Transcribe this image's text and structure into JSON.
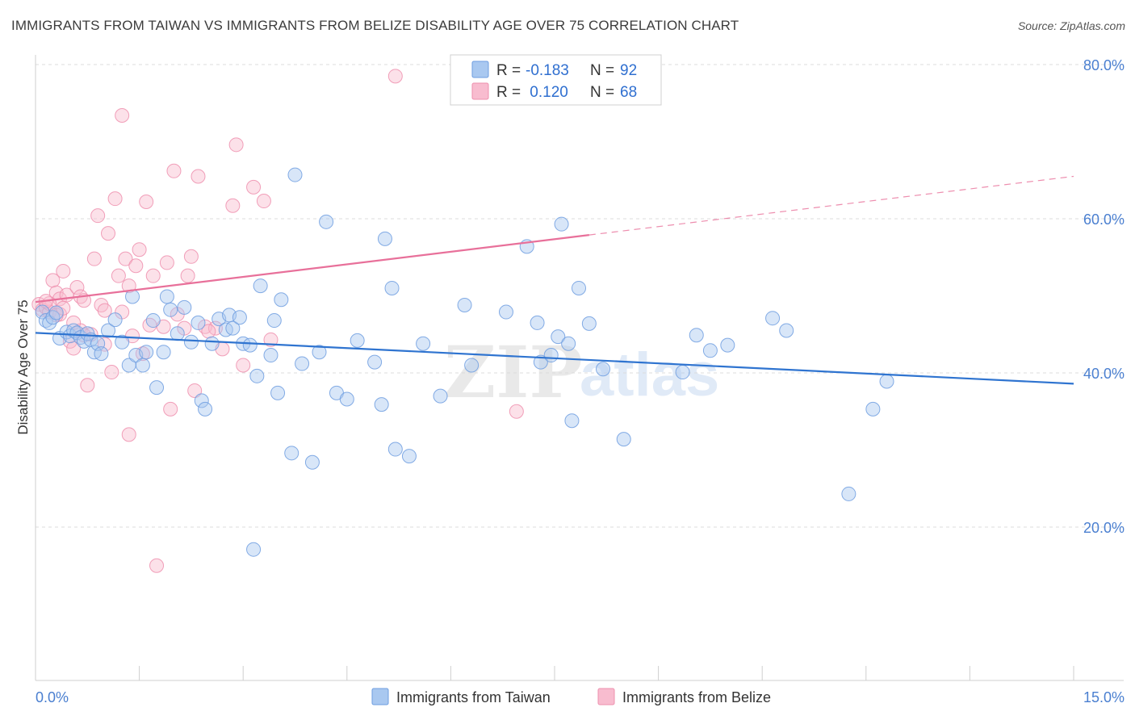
{
  "header": {
    "title": "IMMIGRANTS FROM TAIWAN VS IMMIGRANTS FROM BELIZE DISABILITY AGE OVER 75 CORRELATION CHART",
    "source": "Source: ZipAtlas.com"
  },
  "watermark": {
    "part1": "ZIP",
    "part2": "atlas"
  },
  "legend": {
    "r_label": "R =",
    "n_label": "N =",
    "entries": [
      {
        "r": "-0.183",
        "n": "92"
      },
      {
        "r": " 0.120",
        "n": "68"
      }
    ]
  },
  "colors": {
    "taiwan_fill": "#a9c8f0",
    "taiwan_stroke": "#6e9ee0",
    "taiwan_line": "#2f74d0",
    "belize_fill": "#f8bccf",
    "belize_stroke": "#ee8fae",
    "belize_line": "#e8709a"
  },
  "chart_data": {
    "type": "scatter",
    "title": "IMMIGRANTS FROM TAIWAN VS IMMIGRANTS FROM BELIZE DISABILITY AGE OVER 75 CORRELATION CHART",
    "xlabel": "",
    "ylabel": "Disability Age Over 75",
    "xlim": [
      0,
      15
    ],
    "ylim": [
      0,
      82
    ],
    "x_tick_labels": [
      "0.0%",
      "15.0%"
    ],
    "y_ticks": [
      20,
      40,
      60,
      80
    ],
    "y_tick_labels": [
      "20.0%",
      "40.0%",
      "60.0%",
      "80.0%"
    ],
    "grid": "horizontal dashed",
    "legend_position": "top-center",
    "series": [
      {
        "name": "Immigrants from Taiwan",
        "color": "#6e9ee0",
        "trend": {
          "x": [
            0,
            15
          ],
          "y": [
            45.2,
            38.6
          ],
          "dashed_after": null
        },
        "points": [
          [
            0.1,
            47.9
          ],
          [
            0.15,
            46.8
          ],
          [
            0.2,
            46.5
          ],
          [
            0.25,
            47.2
          ],
          [
            0.3,
            47.8
          ],
          [
            0.35,
            44.5
          ],
          [
            0.45,
            45.3
          ],
          [
            0.5,
            44.8
          ],
          [
            0.55,
            45.5
          ],
          [
            0.6,
            45.2
          ],
          [
            0.65,
            44.6
          ],
          [
            0.7,
            44.1
          ],
          [
            0.75,
            45.1
          ],
          [
            0.8,
            44.3
          ],
          [
            0.85,
            42.7
          ],
          [
            0.9,
            43.8
          ],
          [
            0.95,
            42.5
          ],
          [
            1.05,
            45.5
          ],
          [
            1.15,
            46.9
          ],
          [
            1.25,
            44.0
          ],
          [
            1.35,
            41.0
          ],
          [
            1.4,
            49.9
          ],
          [
            1.45,
            42.3
          ],
          [
            1.55,
            41.0
          ],
          [
            1.6,
            42.7
          ],
          [
            1.7,
            46.8
          ],
          [
            1.75,
            38.1
          ],
          [
            1.85,
            42.7
          ],
          [
            1.9,
            49.9
          ],
          [
            1.95,
            48.2
          ],
          [
            2.05,
            45.1
          ],
          [
            2.15,
            48.5
          ],
          [
            2.25,
            44.0
          ],
          [
            2.35,
            46.5
          ],
          [
            2.4,
            36.4
          ],
          [
            2.45,
            35.3
          ],
          [
            2.55,
            43.8
          ],
          [
            2.65,
            47.0
          ],
          [
            2.75,
            45.6
          ],
          [
            2.8,
            47.5
          ],
          [
            2.85,
            45.8
          ],
          [
            2.95,
            47.2
          ],
          [
            3.0,
            43.8
          ],
          [
            3.1,
            43.6
          ],
          [
            3.15,
            17.1
          ],
          [
            3.2,
            39.6
          ],
          [
            3.25,
            51.3
          ],
          [
            3.4,
            42.3
          ],
          [
            3.45,
            46.8
          ],
          [
            3.5,
            37.4
          ],
          [
            3.55,
            49.5
          ],
          [
            3.7,
            29.6
          ],
          [
            3.75,
            65.7
          ],
          [
            3.85,
            41.2
          ],
          [
            4.0,
            28.4
          ],
          [
            4.1,
            42.7
          ],
          [
            4.2,
            59.6
          ],
          [
            4.35,
            37.4
          ],
          [
            4.5,
            36.6
          ],
          [
            4.9,
            41.4
          ],
          [
            5.0,
            35.9
          ],
          [
            5.05,
            57.4
          ],
          [
            5.15,
            51.0
          ],
          [
            5.2,
            30.1
          ],
          [
            5.4,
            29.2
          ],
          [
            5.6,
            43.8
          ],
          [
            5.85,
            37.0
          ],
          [
            6.2,
            48.8
          ],
          [
            6.8,
            47.9
          ],
          [
            7.1,
            56.4
          ],
          [
            7.25,
            46.5
          ],
          [
            7.3,
            41.4
          ],
          [
            7.45,
            42.3
          ],
          [
            7.55,
            44.7
          ],
          [
            7.6,
            59.3
          ],
          [
            7.7,
            43.8
          ],
          [
            7.75,
            33.8
          ],
          [
            7.85,
            51.0
          ],
          [
            8.0,
            46.4
          ],
          [
            8.2,
            40.5
          ],
          [
            8.5,
            31.4
          ],
          [
            9.35,
            40.1
          ],
          [
            9.55,
            44.9
          ],
          [
            9.75,
            42.9
          ],
          [
            10.0,
            43.6
          ],
          [
            10.65,
            47.1
          ],
          [
            10.85,
            45.5
          ],
          [
            11.75,
            24.3
          ],
          [
            12.1,
            35.3
          ],
          [
            12.3,
            38.9
          ],
          [
            6.3,
            41.0
          ],
          [
            4.65,
            44.2
          ]
        ]
      },
      {
        "name": "Immigrants from Belize",
        "color": "#ee8fae",
        "trend": {
          "x": [
            0,
            15
          ],
          "y": [
            49.2,
            65.5
          ],
          "dashed_after": 8.0
        },
        "points": [
          [
            0.05,
            48.9
          ],
          [
            0.1,
            48.2
          ],
          [
            0.15,
            48.5
          ],
          [
            0.2,
            47.9
          ],
          [
            0.25,
            52.0
          ],
          [
            0.3,
            50.4
          ],
          [
            0.35,
            49.6
          ],
          [
            0.35,
            47.6
          ],
          [
            0.4,
            53.2
          ],
          [
            0.45,
            50.1
          ],
          [
            0.5,
            44.1
          ],
          [
            0.55,
            43.2
          ],
          [
            0.6,
            51.1
          ],
          [
            0.65,
            49.9
          ],
          [
            0.65,
            45.5
          ],
          [
            0.7,
            49.4
          ],
          [
            0.75,
            38.4
          ],
          [
            0.8,
            45.0
          ],
          [
            0.85,
            54.8
          ],
          [
            0.9,
            60.4
          ],
          [
            0.95,
            48.8
          ],
          [
            1.0,
            43.7
          ],
          [
            1.05,
            58.1
          ],
          [
            1.1,
            40.1
          ],
          [
            1.15,
            62.6
          ],
          [
            1.2,
            52.6
          ],
          [
            1.25,
            73.4
          ],
          [
            1.25,
            47.9
          ],
          [
            1.3,
            54.8
          ],
          [
            1.35,
            51.3
          ],
          [
            1.35,
            32.0
          ],
          [
            1.4,
            44.8
          ],
          [
            1.5,
            56.0
          ],
          [
            1.55,
            42.5
          ],
          [
            1.6,
            62.2
          ],
          [
            1.65,
            46.2
          ],
          [
            1.7,
            52.6
          ],
          [
            1.75,
            15.0
          ],
          [
            1.85,
            46.0
          ],
          [
            1.95,
            35.3
          ],
          [
            2.0,
            66.2
          ],
          [
            2.05,
            47.6
          ],
          [
            2.15,
            45.8
          ],
          [
            2.2,
            52.6
          ],
          [
            2.25,
            55.1
          ],
          [
            2.3,
            37.7
          ],
          [
            2.35,
            65.5
          ],
          [
            2.45,
            46.0
          ],
          [
            2.6,
            45.8
          ],
          [
            2.7,
            43.1
          ],
          [
            2.85,
            61.7
          ],
          [
            2.9,
            69.6
          ],
          [
            3.0,
            41.0
          ],
          [
            3.15,
            64.1
          ],
          [
            3.3,
            62.3
          ],
          [
            3.4,
            44.3
          ],
          [
            5.2,
            78.5
          ],
          [
            6.95,
            35.0
          ],
          [
            0.2,
            49.0
          ],
          [
            0.3,
            47.5
          ],
          [
            0.55,
            46.5
          ],
          [
            0.7,
            44.9
          ],
          [
            1.0,
            48.1
          ],
          [
            1.45,
            53.9
          ],
          [
            0.4,
            48.4
          ],
          [
            0.15,
            49.3
          ],
          [
            1.9,
            54.3
          ],
          [
            2.5,
            45.4
          ]
        ]
      }
    ]
  },
  "bottom_legend": {
    "items": [
      {
        "label": "Immigrants from Taiwan"
      },
      {
        "label": "Immigrants from Belize"
      }
    ]
  }
}
